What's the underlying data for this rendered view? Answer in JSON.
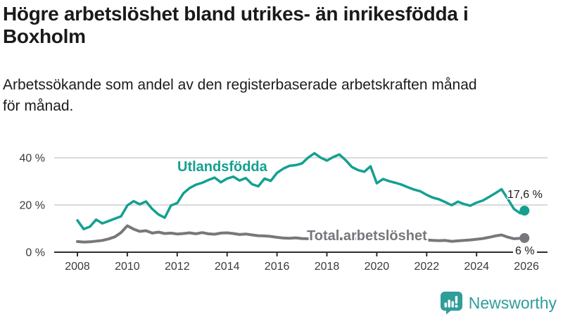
{
  "header": {
    "title": "Högre arbetslöshet bland utrikes- än inrikesfödda i\nBoxholm",
    "subtitle": "Arbetssökande som andel av den registerbaserade arbetskraften månad\nför månad."
  },
  "colors": {
    "foreign_born_line": "#14A091",
    "total_line": "#77777C",
    "grid": "#CDCDCD",
    "axis": "#2E2E2E",
    "axis_text": "#3A3A3A",
    "text": "#1A1A1A",
    "logo": "#2F9D99"
  },
  "chart_data": {
    "type": "line",
    "title": "Högre arbetslöshet bland utrikes- än inrikesfödda i\nBoxholm",
    "subtitle": "Arbetssökande som andel av den registerbaserade arbetskraften månad\nför månad.",
    "xlabel": "",
    "ylabel": "",
    "x_unit": "decimal_year",
    "xlim": [
      2007.07,
      2026.84
    ],
    "ylim": [
      0,
      44
    ],
    "grid_values": [
      20,
      40
    ],
    "legend_position": "inline-labels",
    "y_ticks": [
      {
        "value": 0,
        "label": "0 %"
      },
      {
        "value": 20,
        "label": "20 %"
      },
      {
        "value": 40,
        "label": "40 %"
      }
    ],
    "x_ticks": [
      {
        "value": 2008,
        "label": "2008"
      },
      {
        "value": 2010,
        "label": "2010"
      },
      {
        "value": 2012,
        "label": "2012"
      },
      {
        "value": 2014,
        "label": "2014"
      },
      {
        "value": 2016,
        "label": "2016"
      },
      {
        "value": 2018,
        "label": "2018"
      },
      {
        "value": 2020,
        "label": "2020"
      },
      {
        "value": 2022,
        "label": "2022"
      },
      {
        "value": 2024,
        "label": "2024"
      },
      {
        "value": 2026,
        "label": "2026"
      }
    ],
    "x": [
      2008,
      2008.25,
      2008.5,
      2008.75,
      2009,
      2009.25,
      2009.5,
      2009.75,
      2010,
      2010.25,
      2010.5,
      2010.75,
      2011,
      2011.25,
      2011.5,
      2011.75,
      2012,
      2012.25,
      2012.5,
      2012.75,
      2013,
      2013.25,
      2013.5,
      2013.75,
      2014,
      2014.25,
      2014.5,
      2014.75,
      2015,
      2015.25,
      2015.5,
      2015.75,
      2016,
      2016.25,
      2016.5,
      2016.75,
      2017,
      2017.25,
      2017.5,
      2017.75,
      2018,
      2018.25,
      2018.5,
      2018.75,
      2019,
      2019.25,
      2019.5,
      2019.75,
      2020,
      2020.25,
      2020.5,
      2020.75,
      2021,
      2021.25,
      2021.5,
      2021.75,
      2022,
      2022.25,
      2022.5,
      2022.75,
      2023,
      2023.25,
      2023.5,
      2023.75,
      2024,
      2024.25,
      2024.5,
      2024.75,
      2025,
      2025.25,
      2025.5,
      2025.75,
      2025.92
    ],
    "series": [
      {
        "name": "Utlandsfödda",
        "color": "#14A091",
        "end_label": "17,6 %",
        "end_value": 17.6,
        "values": [
          13.5,
          9.8,
          10.8,
          13.8,
          12.2,
          13.2,
          14.2,
          15.2,
          19.8,
          21.6,
          20.3,
          21.5,
          18.3,
          16.0,
          14.6,
          19.8,
          20.8,
          25.0,
          27.2,
          28.6,
          29.4,
          30.6,
          31.6,
          29.6,
          31.2,
          32.0,
          30.4,
          31.4,
          28.8,
          27.9,
          31.2,
          30.2,
          33.6,
          35.4,
          36.6,
          36.9,
          37.6,
          40.1,
          41.9,
          40.1,
          38.8,
          40.3,
          41.4,
          39.0,
          36.1,
          34.8,
          34.1,
          36.4,
          29.2,
          31.0,
          30.1,
          29.4,
          28.6,
          27.5,
          26.5,
          25.8,
          24.3,
          23.1,
          22.4,
          21.2,
          19.9,
          21.4,
          20.4,
          19.7,
          21.0,
          21.9,
          23.4,
          25.0,
          26.7,
          22.6,
          18.3,
          16.5,
          17.6
        ]
      },
      {
        "name": "Total arbetslöshet",
        "color": "#77777C",
        "end_label": "6 %",
        "end_value": 6.0,
        "values": [
          4.5,
          4.3,
          4.4,
          4.7,
          5.0,
          5.6,
          6.5,
          8.3,
          11.2,
          9.8,
          8.8,
          9.1,
          8.1,
          8.5,
          7.9,
          8.1,
          7.7,
          7.9,
          8.2,
          7.8,
          8.3,
          7.8,
          7.6,
          8.1,
          8.2,
          7.9,
          7.5,
          7.7,
          7.3,
          7.0,
          6.9,
          6.7,
          6.3,
          6.0,
          5.9,
          6.1,
          5.8,
          5.7,
          5.9,
          5.8,
          5.6,
          5.5,
          5.7,
          5.6,
          5.8,
          5.7,
          5.9,
          6.1,
          6.4,
          6.7,
          6.4,
          6.2,
          6.0,
          5.8,
          5.6,
          5.4,
          5.2,
          5.0,
          4.9,
          5.0,
          4.6,
          4.8,
          5.0,
          5.2,
          5.5,
          5.8,
          6.3,
          6.9,
          7.3,
          6.4,
          5.7,
          5.9,
          6.0
        ]
      }
    ]
  },
  "logo": {
    "text": "Newsworthy"
  }
}
